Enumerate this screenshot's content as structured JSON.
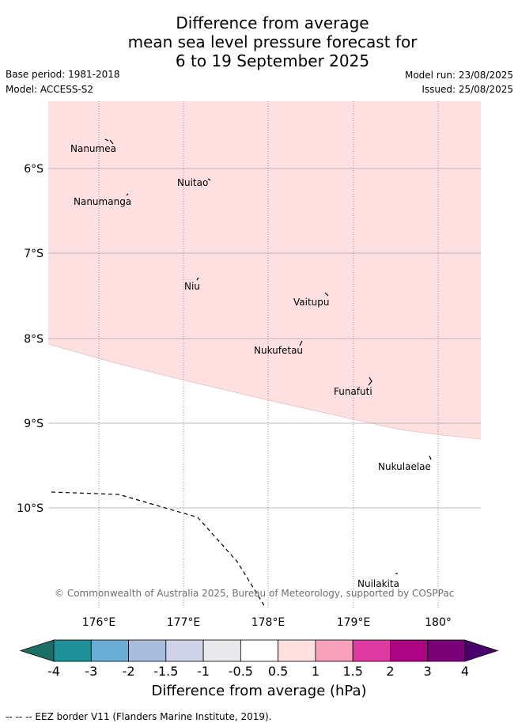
{
  "title": {
    "line1": "Difference from average",
    "line2": "mean sea level pressure forecast for",
    "line3": "6 to 19 September 2025"
  },
  "meta": {
    "base_period": "Base period: 1981-2018",
    "model": "Model: ACCESS-S2",
    "model_run": "Model run: 23/08/2025",
    "issued": "Issued: 25/08/2025"
  },
  "map": {
    "lat_labels": [
      "6°S",
      "7°S",
      "8°S",
      "9°S",
      "10°S"
    ],
    "lon_labels": [
      "176°E",
      "177°E",
      "178°E",
      "179°E",
      "180°"
    ],
    "places": [
      "Nanumea",
      "Nuitao",
      "Nanumanga",
      "Niu",
      "Vaitupu",
      "Nukufetau",
      "Funafuti",
      "Nukulaelae",
      "Nuilakita"
    ],
    "anomaly_region_color": "#fde0df",
    "anomaly_region_class": "0.5 to 1",
    "copyright": "© Commonwealth of Australia 2025, Bureau of Meteorology, supported by COSPPac"
  },
  "colorbar": {
    "ticks": [
      "-4",
      "-3",
      "-2",
      "-1.5",
      "-1",
      "-0.5",
      "0.5",
      "1",
      "1.5",
      "2",
      "3",
      "4"
    ],
    "colors": [
      "#1a6e66",
      "#1f9198",
      "#6aaed6",
      "#a9bddf",
      "#d0d2e8",
      "#e9e9eb",
      "#ffffff",
      "#fde0df",
      "#f7a1bc",
      "#de3aa1",
      "#ac0482",
      "#7b0077",
      "#4a006a"
    ],
    "label": "Difference from average (hPa)"
  },
  "footer": "-- -- -- EEZ border V11 (Flanders Marine Institute, 2019)."
}
